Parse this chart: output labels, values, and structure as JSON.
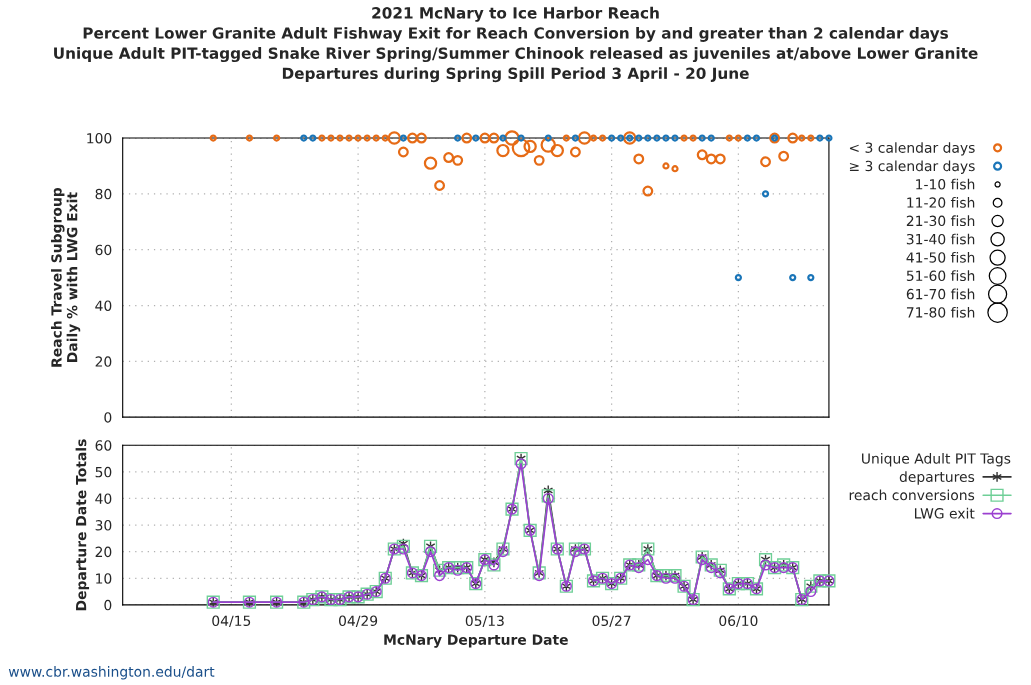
{
  "chart_data": [
    {
      "type": "bubble",
      "title": "2021 McNary to Ice Harbor Reach\nPercent Lower Granite Adult Fishway Exit for Reach Conversion by and greater than 2 calendar days\nUnique Adult PIT-tagged Snake River Spring/Summer Chinook released as juveniles at/above Lower Granite\nDepartures during Spring Spill Period 3 April - 20 June",
      "ylabel": "Reach Travel Subgroup\nDaily % with LWG Exit",
      "xlim": [
        "2021-04-03",
        "2021-06-20"
      ],
      "xticks": [
        "2021-04-15",
        "2021-04-29",
        "2021-05-13",
        "2021-05-27",
        "2021-06-10"
      ],
      "ylim": [
        0,
        100
      ],
      "yticks": [
        0,
        20,
        40,
        60,
        80,
        100
      ],
      "tick_labels": "y",
      "grid": true,
      "legend": "right",
      "marker": "circle",
      "size_legend": [
        {
          "value": 5,
          "label": "1-10 fish"
        },
        {
          "value": 15,
          "label": "11-20 fish"
        },
        {
          "value": 25,
          "label": "21-30 fish"
        },
        {
          "value": 35,
          "label": "31-40 fish"
        },
        {
          "value": 45,
          "label": "41-50 fish"
        },
        {
          "value": 55,
          "label": "51-60 fish"
        },
        {
          "value": 65,
          "label": "61-70 fish"
        },
        {
          "value": 75,
          "label": "71-80 fish"
        }
      ],
      "series": [
        {
          "name": "< 3 calendar days",
          "color": "#e66b16",
          "x": [
            "2021-04-13",
            "2021-04-17",
            "2021-04-20",
            "2021-04-25",
            "2021-04-26",
            "2021-04-27",
            "2021-04-28",
            "2021-04-29",
            "2021-04-30",
            "2021-05-01",
            "2021-05-02",
            "2021-05-03",
            "2021-05-04",
            "2021-05-05",
            "2021-05-06",
            "2021-05-07",
            "2021-05-08",
            "2021-05-09",
            "2021-05-10",
            "2021-05-11",
            "2021-05-13",
            "2021-05-14",
            "2021-05-15",
            "2021-05-16",
            "2021-05-17",
            "2021-05-18",
            "2021-05-19",
            "2021-05-20",
            "2021-05-21",
            "2021-05-22",
            "2021-05-23",
            "2021-05-24",
            "2021-05-25",
            "2021-05-26",
            "2021-05-29",
            "2021-05-30",
            "2021-05-31",
            "2021-06-02",
            "2021-06-03",
            "2021-06-04",
            "2021-06-05",
            "2021-06-06",
            "2021-06-07",
            "2021-06-08",
            "2021-06-09",
            "2021-06-10",
            "2021-06-13",
            "2021-06-14",
            "2021-06-15",
            "2021-06-16",
            "2021-06-17",
            "2021-06-18"
          ],
          "values": [
            100,
            100,
            100,
            100,
            100,
            100,
            100,
            100,
            100,
            100,
            100,
            100,
            95,
            100,
            100,
            91,
            83,
            93,
            92,
            100,
            100,
            100,
            95.5,
            100,
            96.5,
            97,
            92,
            97.5,
            95.5,
            100,
            95,
            100,
            100,
            100,
            100,
            92.5,
            81,
            90,
            89,
            100,
            100,
            94,
            92.5,
            92.5,
            100,
            100,
            91.5,
            100,
            93.5,
            100,
            100,
            100
          ],
          "sizes": [
            5,
            5,
            5,
            5,
            5,
            5,
            5,
            5,
            5,
            5,
            5,
            25,
            15,
            15,
            15,
            25,
            15,
            15,
            15,
            15,
            15,
            15,
            25,
            35,
            55,
            25,
            15,
            35,
            25,
            5,
            15,
            25,
            5,
            5,
            25,
            15,
            15,
            5,
            5,
            5,
            5,
            15,
            15,
            15,
            5,
            5,
            15,
            15,
            15,
            15,
            5,
            5
          ]
        },
        {
          "name": "≥ 3 calendar days",
          "color": "#1a75b8",
          "x": [
            "2021-04-23",
            "2021-04-24",
            "2021-05-04",
            "2021-05-10",
            "2021-05-12",
            "2021-05-15",
            "2021-05-17",
            "2021-05-20",
            "2021-05-23",
            "2021-05-27",
            "2021-05-28",
            "2021-05-29",
            "2021-05-30",
            "2021-05-31",
            "2021-06-01",
            "2021-06-02",
            "2021-06-03",
            "2021-06-06",
            "2021-06-07",
            "2021-06-10",
            "2021-06-11",
            "2021-06-12",
            "2021-06-13",
            "2021-06-14",
            "2021-06-16",
            "2021-06-18",
            "2021-06-19",
            "2021-06-20"
          ],
          "values": [
            100,
            100,
            100,
            100,
            100,
            100,
            100,
            100,
            100,
            100,
            100,
            100,
            100,
            100,
            100,
            100,
            100,
            100,
            100,
            50,
            100,
            100,
            80,
            100,
            50,
            50,
            100,
            100
          ],
          "sizes": [
            5,
            5,
            5,
            5,
            5,
            5,
            5,
            5,
            5,
            5,
            5,
            5,
            5,
            5,
            5,
            5,
            5,
            5,
            5,
            5,
            5,
            5,
            5,
            5,
            5,
            5,
            5,
            5
          ]
        }
      ]
    },
    {
      "type": "line",
      "xlabel": "McNary Departure Date",
      "ylabel": "Departure Date Totals",
      "legend_title": "Unique Adult PIT Tags",
      "xlim": [
        "2021-04-03",
        "2021-06-20"
      ],
      "xticks": [
        {
          "value": "2021-04-15",
          "label": "04/15"
        },
        {
          "value": "2021-04-29",
          "label": "04/29"
        },
        {
          "value": "2021-05-13",
          "label": "05/13"
        },
        {
          "value": "2021-05-27",
          "label": "05/27"
        },
        {
          "value": "2021-06-10",
          "label": "06/10"
        }
      ],
      "ylim": [
        0,
        60
      ],
      "yticks": [
        0,
        10,
        20,
        30,
        40,
        50,
        60
      ],
      "grid": true,
      "legend": "right",
      "annotations": [
        "www.cbr.washington.edu/dart"
      ],
      "x": [
        "2021-04-13",
        "2021-04-17",
        "2021-04-20",
        "2021-04-23",
        "2021-04-24",
        "2021-04-25",
        "2021-04-26",
        "2021-04-27",
        "2021-04-28",
        "2021-04-29",
        "2021-04-30",
        "2021-05-01",
        "2021-05-02",
        "2021-05-03",
        "2021-05-04",
        "2021-05-05",
        "2021-05-06",
        "2021-05-07",
        "2021-05-08",
        "2021-05-09",
        "2021-05-10",
        "2021-05-11",
        "2021-05-12",
        "2021-05-13",
        "2021-05-14",
        "2021-05-15",
        "2021-05-16",
        "2021-05-17",
        "2021-05-18",
        "2021-05-19",
        "2021-05-20",
        "2021-05-21",
        "2021-05-22",
        "2021-05-23",
        "2021-05-24",
        "2021-05-25",
        "2021-05-26",
        "2021-05-27",
        "2021-05-28",
        "2021-05-29",
        "2021-05-30",
        "2021-05-31",
        "2021-06-01",
        "2021-06-02",
        "2021-06-03",
        "2021-06-04",
        "2021-06-05",
        "2021-06-06",
        "2021-06-07",
        "2021-06-08",
        "2021-06-09",
        "2021-06-10",
        "2021-06-11",
        "2021-06-12",
        "2021-06-13",
        "2021-06-14",
        "2021-06-15",
        "2021-06-16",
        "2021-06-17",
        "2021-06-18",
        "2021-06-19",
        "2021-06-20"
      ],
      "series": [
        {
          "name": "departures",
          "color": "#333333",
          "marker": "cross",
          "values": [
            1,
            1,
            1,
            1,
            2,
            3,
            2,
            2,
            3,
            3,
            4,
            5,
            10,
            21,
            23,
            12,
            11,
            22,
            13,
            14,
            14,
            14,
            8,
            17,
            16,
            21,
            36,
            55,
            28,
            12,
            43,
            21,
            7,
            21,
            21,
            9,
            10,
            8,
            10,
            15,
            15,
            21,
            11,
            11,
            11,
            7,
            2,
            18,
            15,
            13,
            6,
            8,
            8,
            6,
            17,
            14,
            15,
            14,
            2,
            7,
            9,
            9
          ]
        },
        {
          "name": "reach conversions",
          "color": "#6fcf97",
          "marker": "square",
          "values": [
            1,
            1,
            1,
            1,
            2,
            3,
            2,
            2,
            3,
            3,
            4,
            5,
            10,
            21,
            22,
            12,
            11,
            22,
            13,
            14,
            14,
            14,
            8,
            17,
            15,
            21,
            36,
            55,
            28,
            12,
            41,
            21,
            7,
            21,
            21,
            9,
            10,
            8,
            10,
            15,
            15,
            21,
            11,
            11,
            11,
            7,
            2,
            18,
            15,
            13,
            6,
            8,
            8,
            6,
            17,
            14,
            15,
            14,
            2,
            7,
            9,
            9
          ]
        },
        {
          "name": "LWG exit",
          "color": "#9b40d0",
          "marker": "circle",
          "values": [
            1,
            1,
            1,
            1,
            2,
            3,
            2,
            2,
            3,
            3,
            4,
            5,
            10,
            21,
            21,
            12,
            11,
            20,
            11,
            14,
            13,
            14,
            8,
            17,
            15,
            20,
            36,
            53,
            28,
            11,
            40,
            21,
            7,
            20,
            21,
            9,
            10,
            8,
            10,
            15,
            14,
            17,
            11,
            10,
            10,
            7,
            2,
            17,
            14,
            12,
            6,
            8,
            8,
            6,
            15,
            14,
            14,
            14,
            2,
            5,
            9,
            9
          ]
        }
      ]
    }
  ]
}
